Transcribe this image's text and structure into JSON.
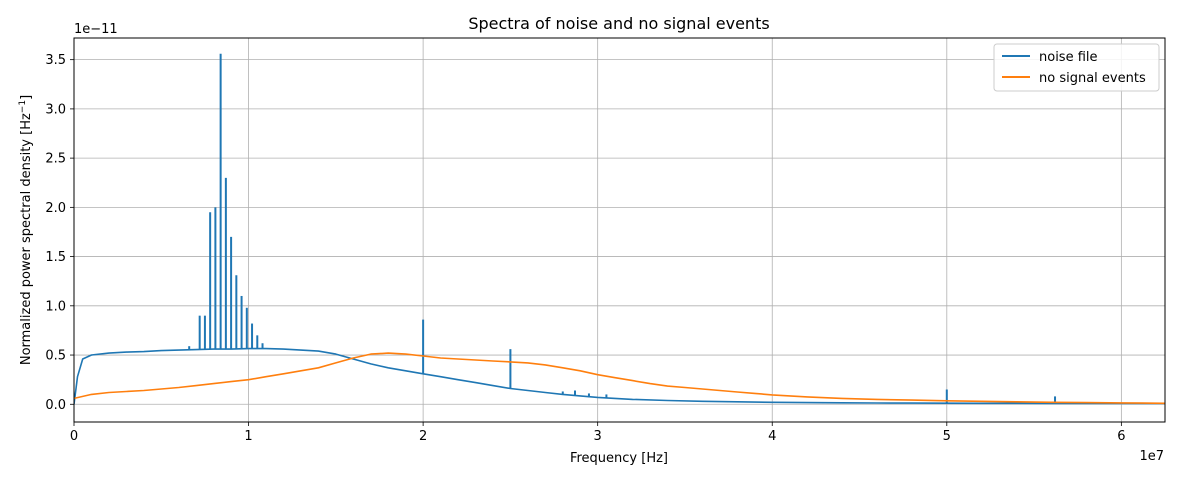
{
  "chart_data": {
    "type": "line",
    "title": "Spectra of noise and no signal events",
    "xlabel": "Frequency [Hz]",
    "ylabel_main": "Normalized power spectral density [Hz",
    "ylabel_sup": "−1",
    "ylabel_end": "]",
    "x_offset_text": "1e7",
    "y_offset_text": "1e−11",
    "xlim": [
      0,
      62500000
    ],
    "ylim": [
      -1.8e-12,
      3.72e-11
    ],
    "xticks": [
      0,
      10000000,
      20000000,
      30000000,
      40000000,
      50000000,
      60000000
    ],
    "xtick_labels": [
      "0",
      "1",
      "2",
      "3",
      "4",
      "5",
      "6"
    ],
    "yticks": [
      0,
      5e-12,
      1e-11,
      1.5e-11,
      2e-11,
      2.5e-11,
      3e-11,
      3.5e-11
    ],
    "ytick_labels": [
      "0.0",
      "0.5",
      "1.0",
      "1.5",
      "2.0",
      "2.5",
      "3.0",
      "3.5"
    ],
    "grid": true,
    "legend_position": "top-right",
    "series": [
      {
        "name": "noise file",
        "color": "#1f77b4",
        "x": [
          0,
          200000,
          500000,
          1000000,
          2000000,
          3000000,
          4000000,
          5000000,
          6000000,
          7000000,
          8000000,
          9000000,
          10000000,
          11000000,
          12000000,
          13000000,
          14000000,
          15000000,
          16000000,
          17000000,
          18000000,
          19000000,
          20000000,
          21000000,
          22000000,
          23000000,
          24000000,
          25000000,
          26000000,
          27000000,
          28000000,
          29000000,
          30000000,
          32000000,
          34000000,
          36000000,
          38000000,
          40000000,
          42000000,
          44000000,
          46000000,
          48000000,
          50000000,
          52000000,
          54000000,
          56000000,
          58000000,
          60000000,
          62500000
        ],
        "y": [
          0,
          2.8e-12,
          4.6e-12,
          5e-12,
          5.2e-12,
          5.3e-12,
          5.35e-12,
          5.45e-12,
          5.5e-12,
          5.55e-12,
          5.6e-12,
          5.6e-12,
          5.65e-12,
          5.65e-12,
          5.6e-12,
          5.5e-12,
          5.4e-12,
          5.1e-12,
          4.6e-12,
          4.1e-12,
          3.7e-12,
          3.4e-12,
          3.1e-12,
          2.8e-12,
          2.5e-12,
          2.2e-12,
          1.9e-12,
          1.6e-12,
          1.4e-12,
          1.2e-12,
          1e-12,
          8.5e-13,
          7e-13,
          5e-13,
          3.8e-13,
          3e-13,
          2.5e-13,
          2e-13,
          1.7e-13,
          1.5e-13,
          1.3e-13,
          1.2e-13,
          1.1e-13,
          1e-13,
          1e-13,
          9e-14,
          9e-14,
          8e-14,
          8e-14
        ],
        "spikes": [
          [
            6600000,
            5.9e-12
          ],
          [
            7200000,
            9e-12
          ],
          [
            7500000,
            9e-12
          ],
          [
            7800000,
            1.95e-11
          ],
          [
            8100000,
            2e-11
          ],
          [
            8400000,
            3.56e-11
          ],
          [
            8700000,
            2.3e-11
          ],
          [
            9000000,
            1.7e-11
          ],
          [
            9300000,
            1.31e-11
          ],
          [
            9600000,
            1.1e-11
          ],
          [
            9900000,
            9.8e-12
          ],
          [
            10200000,
            8.2e-12
          ],
          [
            10500000,
            7e-12
          ],
          [
            10800000,
            6.2e-12
          ],
          [
            20000000,
            8.6e-12
          ],
          [
            25000000,
            5.6e-12
          ],
          [
            28000000,
            1.3e-12
          ],
          [
            28700000,
            1.4e-12
          ],
          [
            29500000,
            1.1e-12
          ],
          [
            30500000,
            1e-12
          ],
          [
            50000000,
            1.5e-12
          ],
          [
            56200000,
            8e-13
          ]
        ]
      },
      {
        "name": "no signal events",
        "color": "#ff7f0e",
        "x": [
          0,
          1000000,
          2000000,
          3000000,
          4000000,
          5000000,
          6000000,
          7000000,
          8000000,
          9000000,
          10000000,
          11000000,
          12000000,
          13000000,
          14000000,
          15000000,
          16000000,
          17000000,
          18000000,
          19000000,
          20000000,
          21000000,
          22000000,
          23000000,
          24000000,
          25000000,
          26000000,
          27000000,
          28000000,
          29000000,
          30000000,
          31000000,
          32000000,
          33000000,
          34000000,
          35000000,
          36000000,
          37000000,
          38000000,
          39000000,
          40000000,
          42000000,
          44000000,
          46000000,
          48000000,
          50000000,
          52000000,
          54000000,
          56000000,
          58000000,
          60000000,
          62500000
        ],
        "y": [
          6e-13,
          1e-12,
          1.2e-12,
          1.3e-12,
          1.4e-12,
          1.55e-12,
          1.7e-12,
          1.9e-12,
          2.1e-12,
          2.3e-12,
          2.5e-12,
          2.8e-12,
          3.1e-12,
          3.4e-12,
          3.7e-12,
          4.2e-12,
          4.7e-12,
          5.1e-12,
          5.2e-12,
          5.1e-12,
          4.9e-12,
          4.7e-12,
          4.6e-12,
          4.5e-12,
          4.4e-12,
          4.3e-12,
          4.2e-12,
          4e-12,
          3.7e-12,
          3.4e-12,
          3e-12,
          2.7e-12,
          2.4e-12,
          2.1e-12,
          1.85e-12,
          1.7e-12,
          1.55e-12,
          1.4e-12,
          1.25e-12,
          1.1e-12,
          9.5e-13,
          7.5e-13,
          6e-13,
          5e-13,
          4.2e-13,
          3.5e-13,
          3e-13,
          2.5e-13,
          2e-13,
          1.7e-13,
          1.4e-13,
          1e-13
        ]
      }
    ]
  }
}
